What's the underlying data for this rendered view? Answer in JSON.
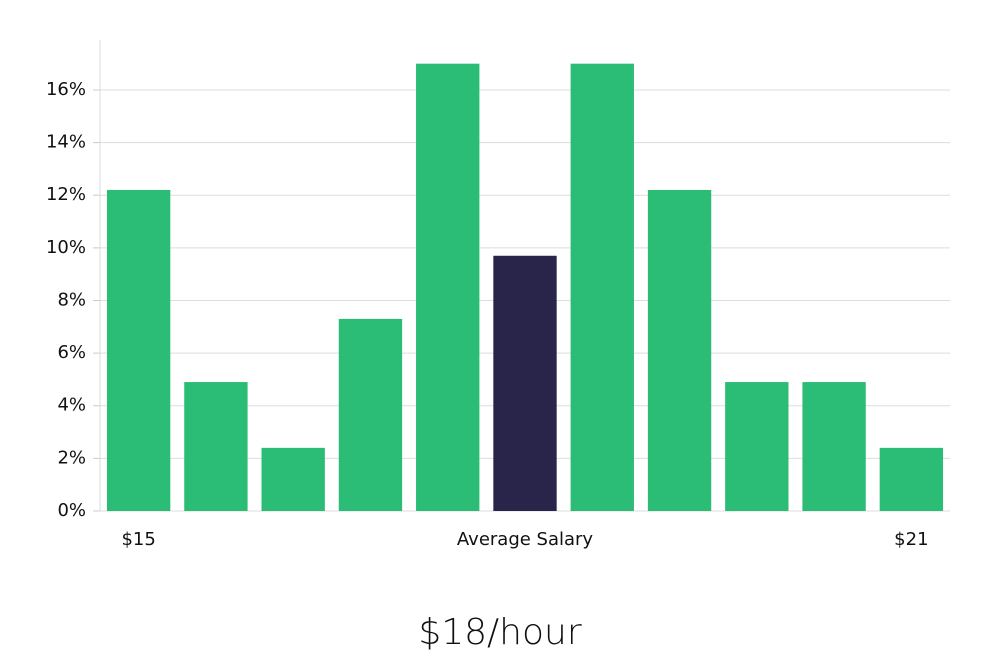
{
  "chart_data": {
    "type": "bar",
    "subtitle": "$18/hour",
    "categories": [
      "$15",
      null,
      null,
      null,
      null,
      "Average Salary",
      null,
      null,
      null,
      null,
      "$21"
    ],
    "values": [
      12.2,
      4.9,
      2.4,
      7.3,
      17.0,
      9.7,
      17.0,
      12.2,
      4.9,
      4.9,
      2.4
    ],
    "colors": [
      "#2bbd75",
      "#2bbd75",
      "#2bbd75",
      "#2bbd75",
      "#2bbd75",
      "#29254a",
      "#2bbd75",
      "#2bbd75",
      "#2bbd75",
      "#2bbd75",
      "#2bbd75"
    ],
    "ylim": [
      0,
      17.9
    ],
    "yticks": [
      {
        "value": 0,
        "label": "0%"
      },
      {
        "value": 2,
        "label": "2%"
      },
      {
        "value": 4,
        "label": "4%"
      },
      {
        "value": 6,
        "label": "6%"
      },
      {
        "value": 8,
        "label": "8%"
      },
      {
        "value": 10,
        "label": "10%"
      },
      {
        "value": 12,
        "label": "12%"
      },
      {
        "value": 14,
        "label": "14%"
      },
      {
        "value": 16,
        "label": "16%"
      }
    ],
    "grid": true
  }
}
